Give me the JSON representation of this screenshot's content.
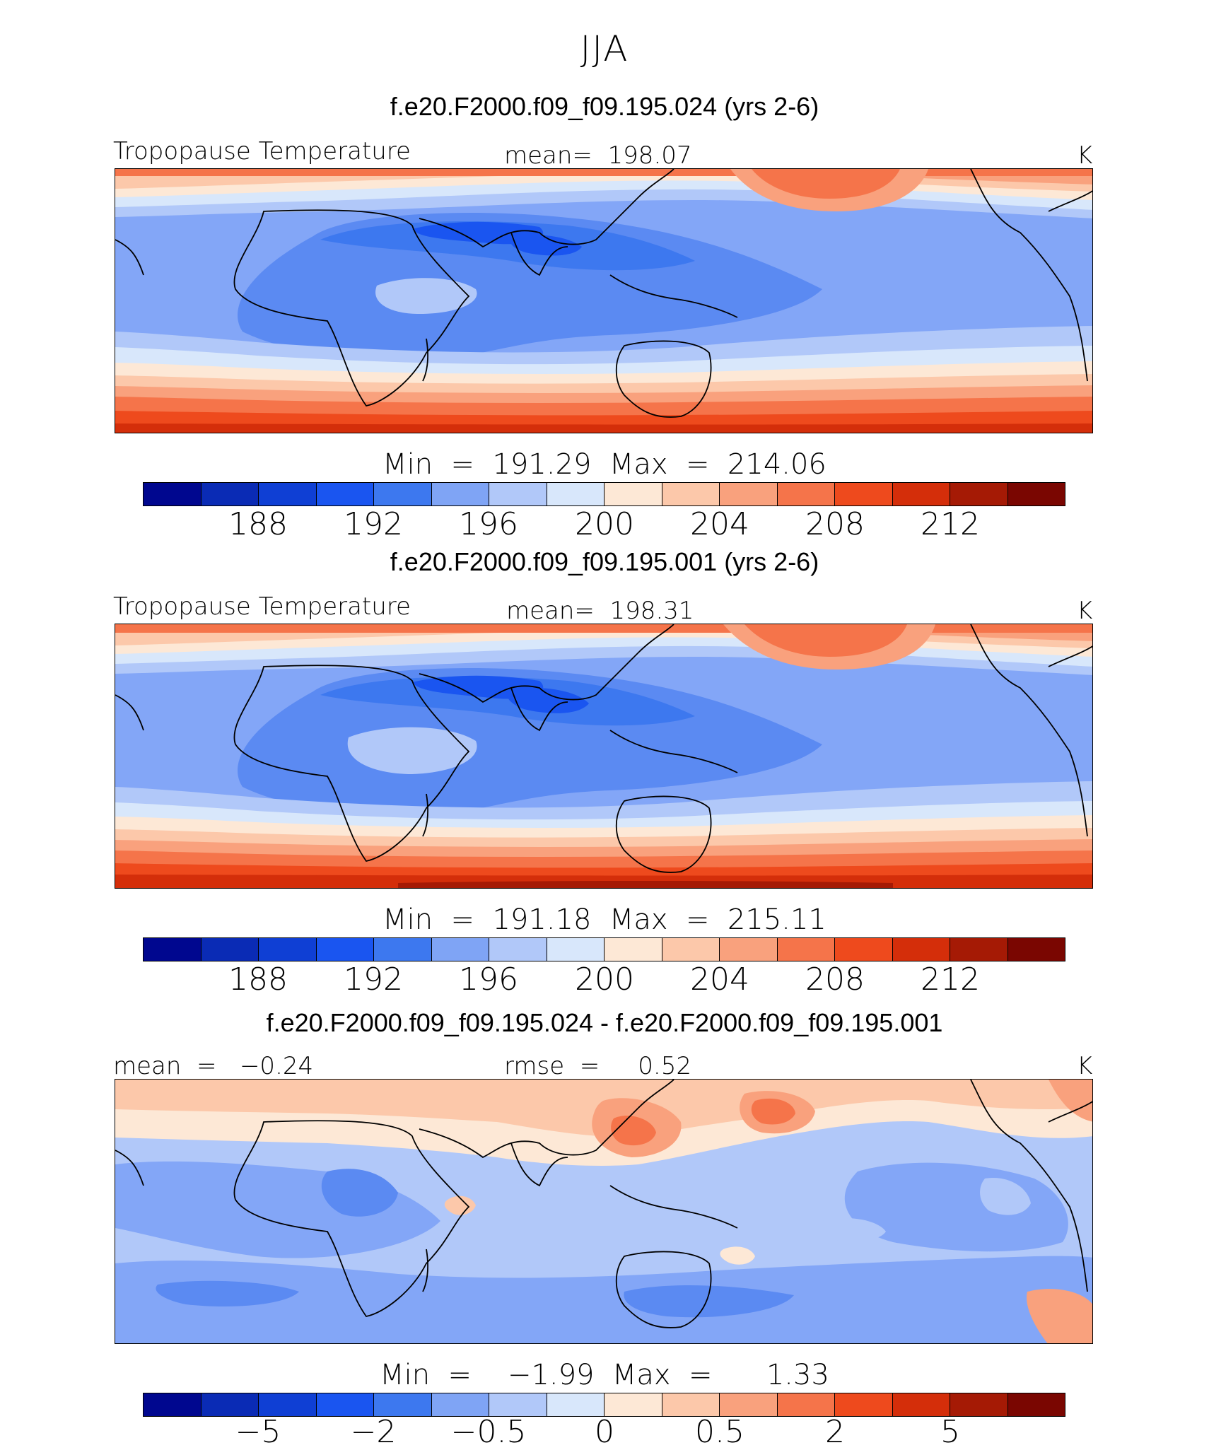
{
  "figure": {
    "season": "JJA"
  },
  "panels": [
    {
      "case_title": "f.e20.F2000.f09_f09.195.024 (yrs 2-6)",
      "left_label": "Tropopause Temperature",
      "center_label": "mean=  198.07",
      "units": "K",
      "minmax": "Min  =  191.29  Max  =  214.06",
      "colorbar": {
        "colors": [
          "#00078f",
          "#0a2bb5",
          "#0f3fd4",
          "#1a55f0",
          "#3d78ef",
          "#7fa4f5",
          "#b1c8f9",
          "#d8e7fb",
          "#fde8d6",
          "#fcc8aa",
          "#f9a17d",
          "#f5744a",
          "#ee4a1d",
          "#d42e0a",
          "#a51a05",
          "#7a0601"
        ],
        "tick_labels": [
          "188",
          "192",
          "196",
          "200",
          "204",
          "208",
          "212"
        ]
      }
    },
    {
      "case_title": "f.e20.F2000.f09_f09.195.001 (yrs 2-6)",
      "left_label": "Tropopause Temperature",
      "center_label": "mean=  198.31",
      "units": "K",
      "minmax": "Min  =  191.18  Max  =  215.11",
      "colorbar": {
        "colors": [
          "#00078f",
          "#0a2bb5",
          "#0f3fd4",
          "#1a55f0",
          "#3d78ef",
          "#7fa4f5",
          "#b1c8f9",
          "#d8e7fb",
          "#fde8d6",
          "#fcc8aa",
          "#f9a17d",
          "#f5744a",
          "#ee4a1d",
          "#d42e0a",
          "#a51a05",
          "#7a0601"
        ],
        "tick_labels": [
          "188",
          "192",
          "196",
          "200",
          "204",
          "208",
          "212"
        ]
      }
    },
    {
      "case_title": "f.e20.F2000.f09_f09.195.024 - f.e20.F2000.f09_f09.195.001",
      "left_label": "mean  =   −0.24",
      "center_label": "rmse  =     0.52",
      "units": "K",
      "minmax": "Min  =    −1.99  Max  =      1.33",
      "colorbar": {
        "colors": [
          "#00078f",
          "#0a2bb5",
          "#0f3fd4",
          "#1a55f0",
          "#3d78ef",
          "#7fa4f5",
          "#b1c8f9",
          "#d8e7fb",
          "#fde8d6",
          "#fcc8aa",
          "#f9a17d",
          "#f5744a",
          "#ee4a1d",
          "#d42e0a",
          "#a51a05",
          "#7a0601"
        ],
        "tick_labels": [
          "−5",
          "−2",
          "−0.5",
          "0",
          "0.5",
          "2",
          "5"
        ]
      }
    }
  ]
}
